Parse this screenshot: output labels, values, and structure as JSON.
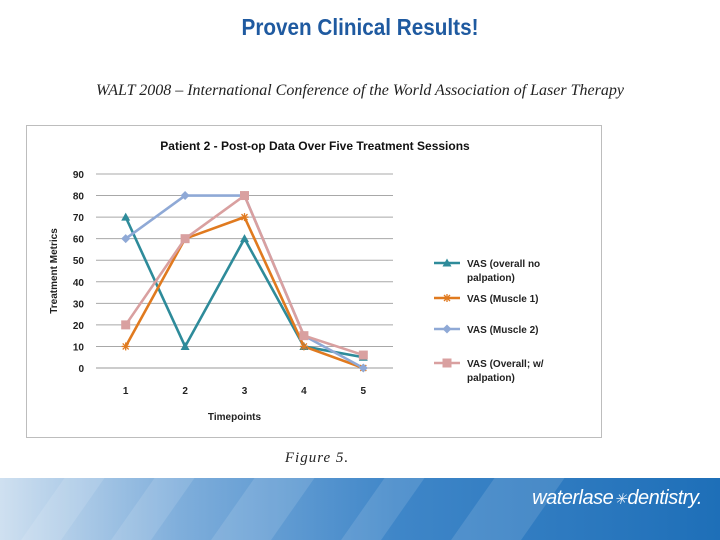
{
  "slide": {
    "title": "Proven Clinical Results!",
    "subtitle": "WALT 2008 – International Conference of the World Association of Laser Therapy",
    "caption": "Figure 5."
  },
  "footer": {
    "brand_part1": "waterlase",
    "brand_separator": "✳",
    "brand_part2": "dentistry."
  },
  "chart_data": {
    "type": "line",
    "title": "Patient 2 - Post-op Data Over Five Treatment Sessions",
    "xlabel": "Timepoints",
    "ylabel": "Treatment Metrics",
    "x": [
      1,
      2,
      3,
      4,
      5
    ],
    "ylim": [
      0,
      90
    ],
    "yticks": [
      0,
      10,
      20,
      30,
      40,
      50,
      60,
      70,
      80,
      90
    ],
    "grid": true,
    "legend_position": "right",
    "series": [
      {
        "name_lines": [
          "VAS (overall no",
          "palpation)"
        ],
        "marker": "triangle",
        "color": "#2e8b9a",
        "values": [
          70,
          10,
          60,
          10,
          5
        ]
      },
      {
        "name_lines": [
          "VAS (Muscle 1)"
        ],
        "marker": "asterisk",
        "color": "#e07a1f",
        "values": [
          10,
          60,
          70,
          10,
          0
        ]
      },
      {
        "name_lines": [
          "VAS (Muscle 2)"
        ],
        "marker": "diamond",
        "color": "#8fa9d6",
        "values": [
          60,
          80,
          80,
          15,
          0
        ]
      },
      {
        "name_lines": [
          "VAS (Overall; w/",
          "palpation)"
        ],
        "marker": "square",
        "color": "#d9a0a0",
        "values": [
          20,
          60,
          80,
          15,
          6
        ]
      }
    ]
  }
}
